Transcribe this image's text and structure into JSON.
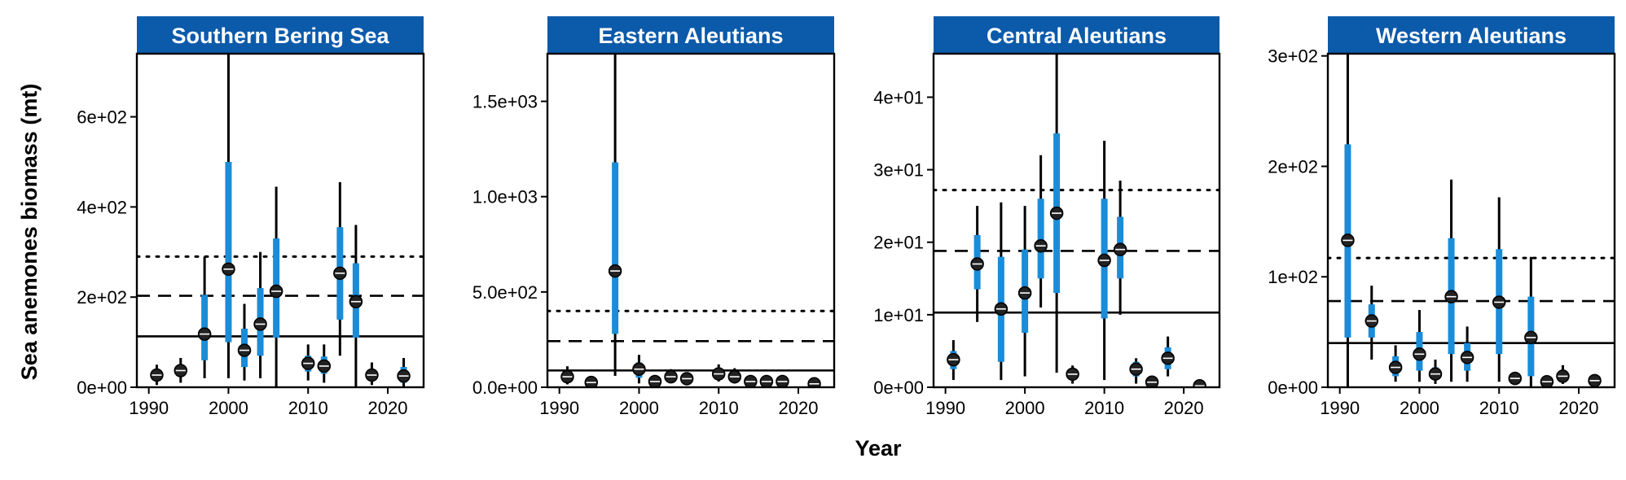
{
  "figure": {
    "ylabel": "Sea anemones biomass (mt)",
    "xlabel": "Year"
  },
  "colors": {
    "strip_fill": "#0C5AAA",
    "strip_text": "#ffffff",
    "inner_interval": "#1A8CD8",
    "outer_interval": "#000000",
    "point": "#222222"
  },
  "chart_data": [
    {
      "type": "scatter",
      "title": "Southern Bering Sea",
      "xlim": [
        1988.5,
        2024.5
      ],
      "ylim": [
        0,
        740
      ],
      "xticks": [
        1990,
        2000,
        2010,
        2020
      ],
      "xtick_labels": [
        "1990",
        "2000",
        "2010",
        "2020"
      ],
      "yticks": [
        0,
        200,
        400,
        600
      ],
      "ytick_labels": [
        "0e+00",
        "2e+02",
        "4e+02",
        "6e+02"
      ],
      "hlines": {
        "solid": 113,
        "dashed": 203,
        "dotted": 290
      },
      "points": [
        {
          "year": 1991,
          "y": 27,
          "lo95": 5,
          "hi95": 50,
          "lo50": 15,
          "hi50": 38
        },
        {
          "year": 1994,
          "y": 37,
          "lo95": 10,
          "hi95": 65,
          "lo50": 25,
          "hi50": 48
        },
        {
          "year": 1997,
          "y": 118,
          "lo95": 20,
          "hi95": 290,
          "lo50": 60,
          "hi50": 205
        },
        {
          "year": 2000,
          "y": 262,
          "lo95": 20,
          "hi95": 740,
          "lo50": 100,
          "hi50": 500
        },
        {
          "year": 2002,
          "y": 82,
          "lo95": 15,
          "hi95": 185,
          "lo50": 45,
          "hi50": 130
        },
        {
          "year": 2004,
          "y": 140,
          "lo95": 20,
          "hi95": 300,
          "lo50": 70,
          "hi50": 220
        },
        {
          "year": 2006,
          "y": 213,
          "lo95": 0,
          "hi95": 445,
          "lo50": 110,
          "hi50": 330
        },
        {
          "year": 2010,
          "y": 53,
          "lo95": 15,
          "hi95": 95,
          "lo50": 35,
          "hi50": 70
        },
        {
          "year": 2012,
          "y": 47,
          "lo95": 10,
          "hi95": 95,
          "lo50": 30,
          "hi50": 68
        },
        {
          "year": 2014,
          "y": 253,
          "lo95": 70,
          "hi95": 455,
          "lo50": 150,
          "hi50": 355
        },
        {
          "year": 2016,
          "y": 190,
          "lo95": 0,
          "hi95": 360,
          "lo50": 110,
          "hi50": 275
        },
        {
          "year": 2018,
          "y": 27,
          "lo95": 5,
          "hi95": 55,
          "lo50": 15,
          "hi50": 40
        },
        {
          "year": 2022,
          "y": 25,
          "lo95": 0,
          "hi95": 65,
          "lo50": 10,
          "hi50": 45
        }
      ]
    },
    {
      "type": "scatter",
      "title": "Eastern Aleutians",
      "xlim": [
        1988.5,
        2024.5
      ],
      "ylim": [
        0,
        1750
      ],
      "xticks": [
        1990,
        2000,
        2010,
        2020
      ],
      "xtick_labels": [
        "1990",
        "2000",
        "2010",
        "2020"
      ],
      "yticks": [
        0,
        500,
        1000,
        1500
      ],
      "ytick_labels": [
        "0.0e+00",
        "5.0e+02",
        "1.0e+03",
        "1.5e+03"
      ],
      "hlines": {
        "solid": 88,
        "dashed": 242,
        "dotted": 400
      },
      "points": [
        {
          "year": 1991,
          "y": 55,
          "lo95": 15,
          "hi95": 110,
          "lo50": 35,
          "hi50": 80
        },
        {
          "year": 1994,
          "y": 25,
          "lo95": 20,
          "hi95": 30,
          "lo50": 22,
          "hi50": 28
        },
        {
          "year": 1997,
          "y": 610,
          "lo95": 60,
          "hi95": 1750,
          "lo50": 280,
          "hi50": 1180
        },
        {
          "year": 2000,
          "y": 95,
          "lo95": 20,
          "hi95": 170,
          "lo50": 50,
          "hi50": 130
        },
        {
          "year": 2002,
          "y": 30,
          "lo95": 25,
          "hi95": 35,
          "lo50": 27,
          "hi50": 33
        },
        {
          "year": 2004,
          "y": 55,
          "lo95": 25,
          "hi95": 95,
          "lo50": 40,
          "hi50": 75
        },
        {
          "year": 2006,
          "y": 45,
          "lo95": 30,
          "hi95": 60,
          "lo50": 38,
          "hi50": 52
        },
        {
          "year": 2010,
          "y": 70,
          "lo95": 30,
          "hi95": 120,
          "lo50": 50,
          "hi50": 95
        },
        {
          "year": 2012,
          "y": 55,
          "lo95": 20,
          "hi95": 100,
          "lo50": 35,
          "hi50": 75
        },
        {
          "year": 2014,
          "y": 30,
          "lo95": 25,
          "hi95": 35,
          "lo50": 27,
          "hi50": 33
        },
        {
          "year": 2016,
          "y": 30,
          "lo95": 25,
          "hi95": 35,
          "lo50": 27,
          "hi50": 33
        },
        {
          "year": 2018,
          "y": 30,
          "lo95": 25,
          "hi95": 35,
          "lo50": 27,
          "hi50": 33
        },
        {
          "year": 2022,
          "y": 18,
          "lo95": 15,
          "hi95": 21,
          "lo50": 16,
          "hi50": 20
        }
      ]
    },
    {
      "type": "scatter",
      "title": "Central Aleutians",
      "xlim": [
        1988.5,
        2024.5
      ],
      "ylim": [
        0,
        46
      ],
      "xticks": [
        1990,
        2000,
        2010,
        2020
      ],
      "xtick_labels": [
        "1990",
        "2000",
        "2010",
        "2020"
      ],
      "yticks": [
        0,
        10,
        20,
        30,
        40
      ],
      "ytick_labels": [
        "0e+00",
        "1e+01",
        "2e+01",
        "3e+01",
        "4e+01"
      ],
      "hlines": {
        "solid": 10.3,
        "dashed": 18.8,
        "dotted": 27.2
      },
      "points": [
        {
          "year": 1991,
          "y": 3.8,
          "lo95": 1.0,
          "hi95": 6.5,
          "lo50": 2.5,
          "hi50": 5.0
        },
        {
          "year": 1994,
          "y": 17.0,
          "lo95": 9.0,
          "hi95": 25.0,
          "lo50": 13.5,
          "hi50": 21.0
        },
        {
          "year": 1997,
          "y": 10.8,
          "lo95": 1.0,
          "hi95": 25.5,
          "lo50": 3.5,
          "hi50": 18.0
        },
        {
          "year": 2000,
          "y": 13.0,
          "lo95": 1.5,
          "hi95": 25.0,
          "lo50": 7.5,
          "hi50": 19.0
        },
        {
          "year": 2002,
          "y": 19.5,
          "lo95": 11.0,
          "hi95": 32.0,
          "lo50": 15.0,
          "hi50": 26.0
        },
        {
          "year": 2004,
          "y": 24.0,
          "lo95": 2.0,
          "hi95": 46.0,
          "lo50": 13.0,
          "hi50": 35.0
        },
        {
          "year": 2006,
          "y": 1.8,
          "lo95": 0.5,
          "hi95": 3.0,
          "lo50": 1.0,
          "hi50": 2.5
        },
        {
          "year": 2010,
          "y": 17.5,
          "lo95": 1.0,
          "hi95": 34.0,
          "lo50": 9.5,
          "hi50": 26.0
        },
        {
          "year": 2012,
          "y": 19.0,
          "lo95": 10.0,
          "hi95": 28.5,
          "lo50": 15.0,
          "hi50": 23.5
        },
        {
          "year": 2014,
          "y": 2.5,
          "lo95": 0.5,
          "hi95": 4.0,
          "lo50": 1.5,
          "hi50": 3.5
        },
        {
          "year": 2016,
          "y": 0.7,
          "lo95": 0.4,
          "hi95": 1.0,
          "lo50": 0.5,
          "hi50": 0.9
        },
        {
          "year": 2018,
          "y": 4.0,
          "lo95": 1.5,
          "hi95": 7.0,
          "lo50": 2.5,
          "hi50": 5.5
        },
        {
          "year": 2022,
          "y": 0.2,
          "lo95": 0.1,
          "hi95": 0.3,
          "lo50": 0.15,
          "hi50": 0.25
        }
      ]
    },
    {
      "type": "scatter",
      "title": "Western Aleutians",
      "xlim": [
        1988.5,
        2024.5
      ],
      "ylim": [
        0,
        302
      ],
      "xticks": [
        1990,
        2000,
        2010,
        2020
      ],
      "xtick_labels": [
        "1990",
        "2000",
        "2010",
        "2020"
      ],
      "yticks": [
        0,
        100,
        200,
        300
      ],
      "ytick_labels": [
        "0e+00",
        "1e+02",
        "2e+02",
        "3e+02"
      ],
      "hlines": {
        "solid": 40,
        "dashed": 78,
        "dotted": 117
      },
      "points": [
        {
          "year": 1991,
          "y": 133,
          "lo95": 0,
          "hi95": 302,
          "lo50": 45,
          "hi50": 220
        },
        {
          "year": 1994,
          "y": 60,
          "lo95": 25,
          "hi95": 92,
          "lo50": 45,
          "hi50": 75
        },
        {
          "year": 1997,
          "y": 18,
          "lo95": 5,
          "hi95": 38,
          "lo50": 10,
          "hi50": 28
        },
        {
          "year": 2000,
          "y": 30,
          "lo95": 5,
          "hi95": 70,
          "lo50": 15,
          "hi50": 50
        },
        {
          "year": 2002,
          "y": 12,
          "lo95": 3,
          "hi95": 25,
          "lo50": 7,
          "hi50": 18
        },
        {
          "year": 2004,
          "y": 82,
          "lo95": 5,
          "hi95": 188,
          "lo50": 30,
          "hi50": 135
        },
        {
          "year": 2006,
          "y": 27,
          "lo95": 5,
          "hi95": 55,
          "lo50": 15,
          "hi50": 40
        },
        {
          "year": 2010,
          "y": 77,
          "lo95": 5,
          "hi95": 172,
          "lo50": 30,
          "hi50": 125
        },
        {
          "year": 2012,
          "y": 8,
          "lo95": 3,
          "hi95": 14,
          "lo50": 5,
          "hi50": 11
        },
        {
          "year": 2014,
          "y": 45,
          "lo95": 0,
          "hi95": 118,
          "lo50": 10,
          "hi50": 82
        },
        {
          "year": 2016,
          "y": 5,
          "lo95": 1,
          "hi95": 10,
          "lo50": 3,
          "hi50": 8
        },
        {
          "year": 2018,
          "y": 10,
          "lo95": 3,
          "hi95": 20,
          "lo50": 6,
          "hi50": 15
        },
        {
          "year": 2022,
          "y": 6,
          "lo95": 2,
          "hi95": 10,
          "lo50": 4,
          "hi50": 8
        }
      ]
    }
  ]
}
